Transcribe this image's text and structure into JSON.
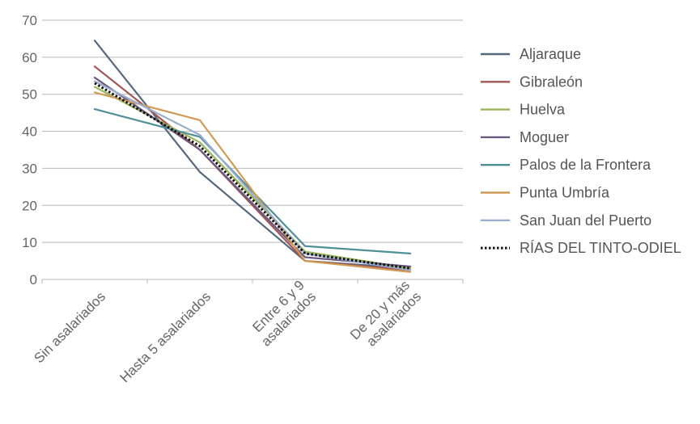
{
  "chart_data": {
    "type": "line",
    "title": "",
    "xlabel": "",
    "ylabel": "",
    "ylim": [
      0,
      70
    ],
    "yticks": [
      "0",
      "10",
      "20",
      "30",
      "40",
      "50",
      "60",
      "70"
    ],
    "grid": true,
    "legend_position": "right",
    "categories": [
      [
        "Sin asalariados"
      ],
      [
        "Hasta 5 asalariados"
      ],
      [
        "Entre 6 y 9",
        "asalariados"
      ],
      [
        "De 20 y más",
        "asalariados"
      ]
    ],
    "series": [
      {
        "name": "Aljaraque",
        "color": "#56687c",
        "dash": "solid",
        "values": [
          64.5,
          29,
          5,
          3
        ]
      },
      {
        "name": "Gibraleón",
        "color": "#a35656",
        "dash": "solid",
        "values": [
          57.5,
          35,
          5,
          2.5
        ]
      },
      {
        "name": "Huelva",
        "color": "#9bb55a",
        "dash": "solid",
        "values": [
          52,
          37,
          7.5,
          3
        ]
      },
      {
        "name": "Moguer",
        "color": "#6a5a80",
        "dash": "solid",
        "values": [
          54.5,
          35,
          6,
          3.5
        ]
      },
      {
        "name": "Palos de la Frontera",
        "color": "#4f8f97",
        "dash": "solid",
        "values": [
          46,
          38.5,
          9,
          7
        ]
      },
      {
        "name": "Punta Umbría",
        "color": "#d19a55",
        "dash": "solid",
        "values": [
          50.5,
          43,
          5,
          2
        ]
      },
      {
        "name": "San Juan del Puerto",
        "color": "#9aafcf",
        "dash": "solid",
        "values": [
          53.5,
          39,
          7,
          2.5
        ]
      },
      {
        "name": "RÍAS DEL TINTO-ODIEL",
        "color": "#111111",
        "dash": "dotted",
        "values": [
          53,
          36,
          7,
          3
        ]
      }
    ]
  }
}
